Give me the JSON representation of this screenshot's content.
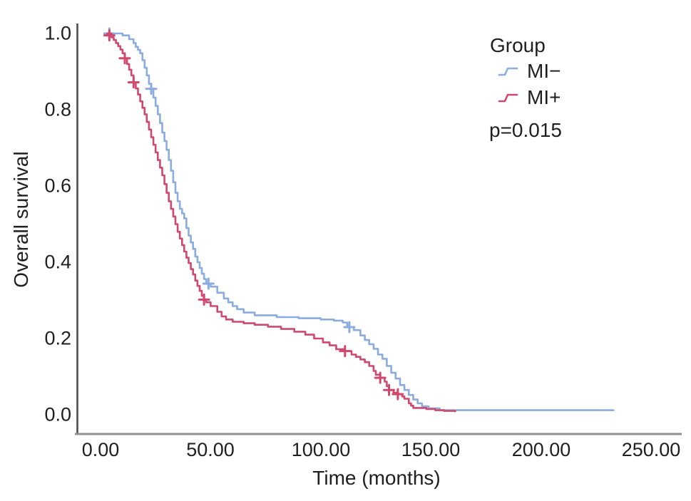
{
  "figure": {
    "x_axis_title": "Time (months)",
    "y_axis_title": "Overall survival",
    "legend_title": "Group",
    "p_value_label": "p=0.015"
  },
  "colors": {
    "mi_minus_blue": "#8AACE0",
    "mi_plus_red": "#D1486F",
    "y_axis_line": "#4d4d4d",
    "x_axis_line": "#909090",
    "text": "#1f1f1f",
    "background": "#ffffff"
  },
  "chart_data": {
    "type": "line",
    "subtype": "kaplan-meier-step",
    "title": "",
    "xlabel": "Time (months)",
    "ylabel": "Overall survival",
    "xlim": [
      0,
      250
    ],
    "ylim": [
      0.0,
      1.0
    ],
    "x_ticks": [
      0,
      50,
      100,
      150,
      200,
      250
    ],
    "y_ticks": [
      1.0,
      0.8,
      0.6,
      0.4,
      0.2,
      0.0
    ],
    "x_tick_labels": [
      "0.00",
      "50.00",
      "100.00",
      "150.00",
      "200.00",
      "250.00"
    ],
    "y_tick_labels": [
      "1.0",
      "0.8",
      "0.6",
      "0.4",
      "0.2",
      "0.0"
    ],
    "grid": false,
    "legend_position": "upper right",
    "legend_title": "Group",
    "annotation": "p=0.015",
    "series": [
      {
        "name": "MI−",
        "color": "#8AACE0",
        "points": [
          [
            3,
            1.0
          ],
          [
            10,
            0.995
          ],
          [
            13,
            0.985
          ],
          [
            15,
            0.975
          ],
          [
            16,
            0.965
          ],
          [
            17,
            0.957
          ],
          [
            18,
            0.948
          ],
          [
            19,
            0.93
          ],
          [
            20,
            0.91
          ],
          [
            21,
            0.89
          ],
          [
            22,
            0.868
          ],
          [
            23,
            0.855
          ],
          [
            24,
            0.832
          ],
          [
            25,
            0.81
          ],
          [
            26,
            0.788
          ],
          [
            27,
            0.765
          ],
          [
            28,
            0.74
          ],
          [
            29,
            0.718
          ],
          [
            30,
            0.695
          ],
          [
            31,
            0.668
          ],
          [
            32,
            0.64
          ],
          [
            33,
            0.61
          ],
          [
            34,
            0.582
          ],
          [
            35,
            0.56
          ],
          [
            36,
            0.54
          ],
          [
            37,
            0.528
          ],
          [
            38,
            0.515
          ],
          [
            39,
            0.49
          ],
          [
            40,
            0.47
          ],
          [
            41,
            0.452
          ],
          [
            42,
            0.435
          ],
          [
            43,
            0.415
          ],
          [
            44,
            0.4
          ],
          [
            45,
            0.385
          ],
          [
            46,
            0.37
          ],
          [
            47,
            0.356
          ],
          [
            48,
            0.344
          ],
          [
            50,
            0.336
          ],
          [
            53,
            0.32
          ],
          [
            56,
            0.305
          ],
          [
            58,
            0.295
          ],
          [
            60,
            0.285
          ],
          [
            62,
            0.277
          ],
          [
            65,
            0.268
          ],
          [
            70,
            0.261
          ],
          [
            80,
            0.256
          ],
          [
            90,
            0.253
          ],
          [
            100,
            0.25
          ],
          [
            106,
            0.247
          ],
          [
            110,
            0.242
          ],
          [
            112,
            0.23
          ],
          [
            115,
            0.222
          ],
          [
            118,
            0.208
          ],
          [
            120,
            0.196
          ],
          [
            122,
            0.185
          ],
          [
            124,
            0.173
          ],
          [
            126,
            0.158
          ],
          [
            128,
            0.147
          ],
          [
            130,
            0.128
          ],
          [
            132,
            0.11
          ],
          [
            134,
            0.095
          ],
          [
            136,
            0.078
          ],
          [
            138,
            0.065
          ],
          [
            140,
            0.052
          ],
          [
            142,
            0.04
          ],
          [
            144,
            0.03
          ],
          [
            146,
            0.022
          ],
          [
            149,
            0.017
          ],
          [
            154,
            0.012
          ],
          [
            233,
            0.012
          ]
        ],
        "censors": [
          [
            4,
            1.0
          ],
          [
            23,
            0.855
          ],
          [
            49,
            0.344
          ],
          [
            113,
            0.23
          ]
        ]
      },
      {
        "name": "MI+",
        "color": "#D1486F",
        "points": [
          [
            3,
            1.0
          ],
          [
            5,
            0.99
          ],
          [
            6,
            0.983
          ],
          [
            7,
            0.975
          ],
          [
            8,
            0.967
          ],
          [
            9,
            0.958
          ],
          [
            10,
            0.948
          ],
          [
            11,
            0.935
          ],
          [
            12,
            0.92
          ],
          [
            13,
            0.905
          ],
          [
            14,
            0.89
          ],
          [
            15,
            0.872
          ],
          [
            16,
            0.856
          ],
          [
            17,
            0.84
          ],
          [
            18,
            0.822
          ],
          [
            19,
            0.805
          ],
          [
            20,
            0.788
          ],
          [
            21,
            0.768
          ],
          [
            22,
            0.748
          ],
          [
            23,
            0.728
          ],
          [
            24,
            0.708
          ],
          [
            25,
            0.688
          ],
          [
            26,
            0.668
          ],
          [
            27,
            0.648
          ],
          [
            28,
            0.628
          ],
          [
            29,
            0.605
          ],
          [
            30,
            0.582
          ],
          [
            31,
            0.56
          ],
          [
            32,
            0.54
          ],
          [
            33,
            0.52
          ],
          [
            34,
            0.5
          ],
          [
            35,
            0.48
          ],
          [
            36,
            0.462
          ],
          [
            37,
            0.445
          ],
          [
            38,
            0.428
          ],
          [
            39,
            0.412
          ],
          [
            40,
            0.398
          ],
          [
            41,
            0.382
          ],
          [
            42,
            0.368
          ],
          [
            43,
            0.352
          ],
          [
            44,
            0.338
          ],
          [
            45,
            0.325
          ],
          [
            46,
            0.312
          ],
          [
            47,
            0.302
          ],
          [
            48,
            0.295
          ],
          [
            50,
            0.285
          ],
          [
            53,
            0.27
          ],
          [
            55,
            0.258
          ],
          [
            57,
            0.25
          ],
          [
            60,
            0.244
          ],
          [
            65,
            0.24
          ],
          [
            70,
            0.236
          ],
          [
            76,
            0.231
          ],
          [
            82,
            0.225
          ],
          [
            88,
            0.218
          ],
          [
            93,
            0.21
          ],
          [
            97,
            0.2
          ],
          [
            101,
            0.19
          ],
          [
            104,
            0.182
          ],
          [
            107,
            0.172
          ],
          [
            111,
            0.167
          ],
          [
            114,
            0.158
          ],
          [
            116,
            0.152
          ],
          [
            118,
            0.145
          ],
          [
            120,
            0.138
          ],
          [
            122,
            0.128
          ],
          [
            124,
            0.115
          ],
          [
            125,
            0.105
          ],
          [
            127,
            0.097
          ],
          [
            129,
            0.087
          ],
          [
            130,
            0.075
          ],
          [
            131,
            0.065
          ],
          [
            133,
            0.058
          ],
          [
            135,
            0.054
          ],
          [
            137,
            0.048
          ],
          [
            138,
            0.042
          ],
          [
            140,
            0.03
          ],
          [
            141,
            0.024
          ],
          [
            142,
            0.018
          ],
          [
            148,
            0.015
          ],
          [
            152,
            0.012
          ],
          [
            156,
            0.01
          ],
          [
            161,
            0.009
          ]
        ],
        "censors": [
          [
            4,
            0.995
          ],
          [
            11,
            0.935
          ],
          [
            15,
            0.872
          ],
          [
            47,
            0.302
          ],
          [
            111,
            0.167
          ],
          [
            127,
            0.097
          ],
          [
            131,
            0.065
          ],
          [
            135,
            0.054
          ]
        ]
      }
    ]
  }
}
